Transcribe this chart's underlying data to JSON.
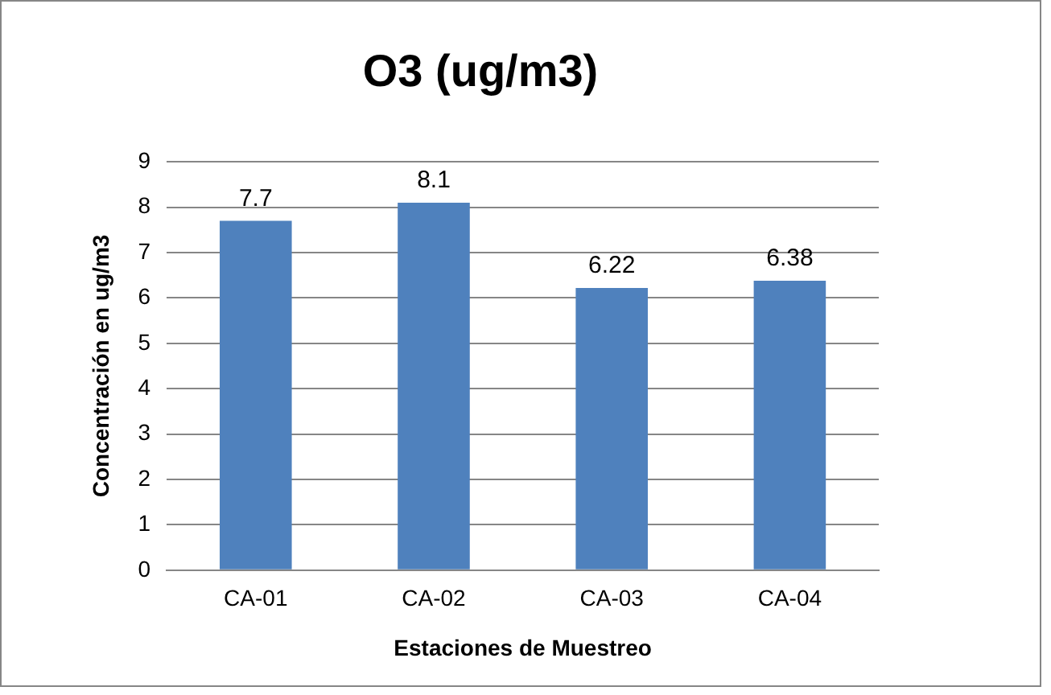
{
  "chart_data": {
    "type": "bar",
    "title": "O3 (ug/m3)",
    "xlabel": "Estaciones de Muestreo",
    "ylabel": "Concentración en ug/m3",
    "categories": [
      "CA-01",
      "CA-02",
      "CA-03",
      "CA-04"
    ],
    "values": [
      7.7,
      8.1,
      6.22,
      6.38
    ],
    "color": "#4f81bd",
    "ylim": [
      0,
      9
    ],
    "yticks": [
      0,
      1,
      2,
      3,
      4,
      5,
      6,
      7,
      8,
      9
    ],
    "grid": "y",
    "data_labels": true,
    "legend": false
  }
}
